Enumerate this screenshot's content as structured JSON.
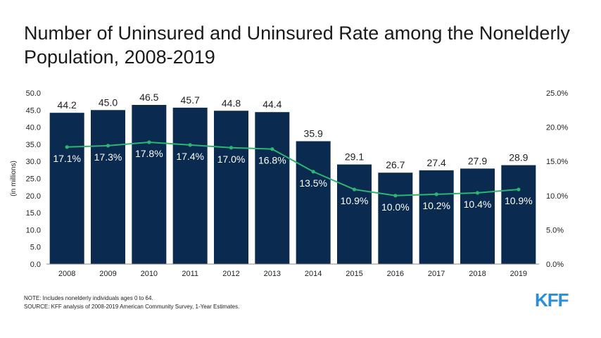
{
  "title": "Number of Uninsured and Uninsured Rate among the Nonelderly Population, 2008-2019",
  "note": "NOTE: Includes nonelderly individuals ages 0 to 64.",
  "source": "SOURCE: KFF analysis of 2008-2019 American Community Survey, 1-Year Estimates.",
  "logo": "KFF",
  "colors": {
    "bar": "#0b2a4f",
    "line": "#2bb673",
    "bar_label": "#222222",
    "rate_label": "#ffffff"
  },
  "chart_data": {
    "type": "bar+line",
    "title": "Number of Uninsured and Uninsured Rate among the Nonelderly Population, 2008-2019",
    "ylabel": "(in millions)",
    "categories": [
      "2008",
      "2009",
      "2010",
      "2011",
      "2012",
      "2013",
      "2014",
      "2015",
      "2016",
      "2017",
      "2018",
      "2019"
    ],
    "series": [
      {
        "name": "Number of Uninsured (millions)",
        "type": "bar",
        "axis": "left",
        "values": [
          44.2,
          45.0,
          46.5,
          45.7,
          44.8,
          44.4,
          35.9,
          29.1,
          26.7,
          27.4,
          27.9,
          28.9
        ],
        "labels": [
          "44.2",
          "45.0",
          "46.5",
          "45.7",
          "44.8",
          "44.4",
          "35.9",
          "29.1",
          "26.7",
          "27.4",
          "27.9",
          "28.9"
        ]
      },
      {
        "name": "Uninsured Rate",
        "type": "line",
        "axis": "right",
        "values": [
          17.1,
          17.3,
          17.8,
          17.4,
          17.0,
          16.8,
          13.5,
          10.9,
          10.0,
          10.2,
          10.4,
          10.9
        ],
        "labels": [
          "17.1%",
          "17.3%",
          "17.8%",
          "17.4%",
          "17.0%",
          "16.8%",
          "13.5%",
          "10.9%",
          "10.0%",
          "10.2%",
          "10.4%",
          "10.9%"
        ]
      }
    ],
    "ylim_left": [
      0,
      50
    ],
    "ylim_right": [
      0,
      25
    ],
    "yticks_left": [
      "0.0",
      "5.0",
      "10.0",
      "15.0",
      "20.0",
      "25.0",
      "30.0",
      "35.0",
      "40.0",
      "45.0",
      "50.0"
    ],
    "yticks_right": [
      "0.0%",
      "5.0%",
      "10.0%",
      "15.0%",
      "20.0%",
      "25.0%"
    ],
    "grid": false
  }
}
